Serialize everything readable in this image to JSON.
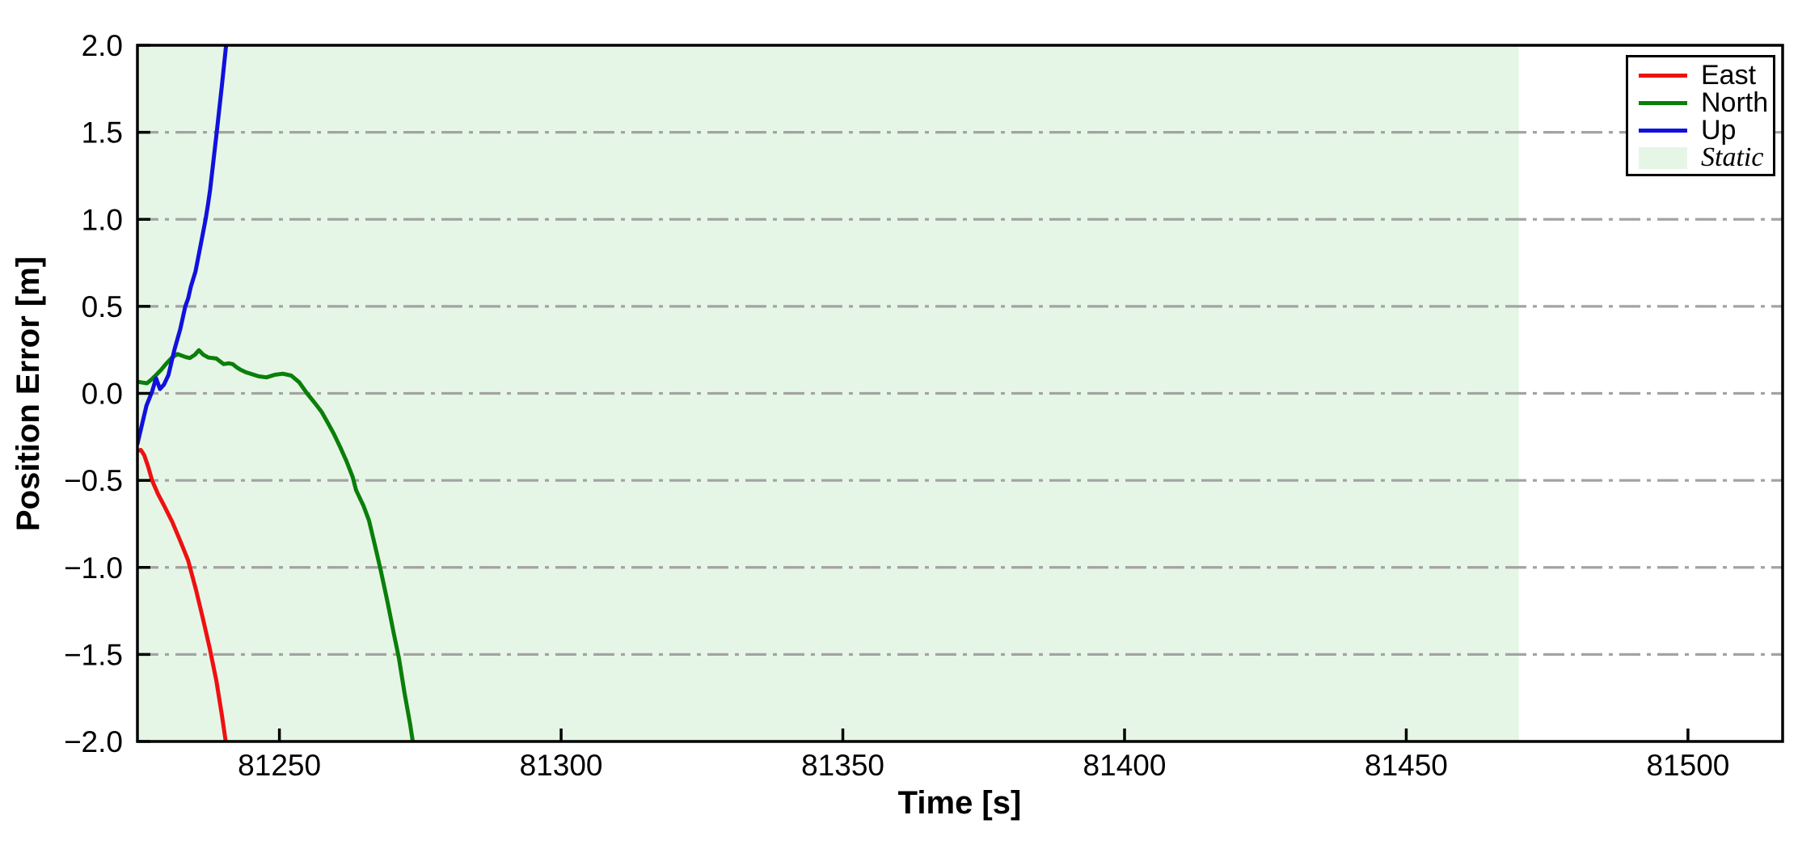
{
  "chart_data": {
    "type": "line",
    "title": "",
    "xlabel": "Time [s]",
    "ylabel": "Position Error [m]",
    "xlim": [
      81224.8,
      81516.8
    ],
    "ylim": [
      -2.0,
      2.0
    ],
    "grid": {
      "axis": "y",
      "style": "dash-dot",
      "color": "#a3a3a3"
    },
    "legend_position": "upper right",
    "xticks": {
      "values": [
        81250,
        81300,
        81350,
        81400,
        81450,
        81500
      ],
      "labels": [
        "81250",
        "81300",
        "81350",
        "81400",
        "81450",
        "81500"
      ]
    },
    "yticks": {
      "values": [
        2.0,
        1.5,
        1.0,
        0.5,
        0.0,
        -0.5,
        -1.0,
        -1.5,
        -2.0
      ],
      "labels": [
        "2.0",
        "1.5",
        "1.0",
        "0.5",
        "0.0",
        "−0.5",
        "−1.0",
        "−1.5",
        "−2.0"
      ]
    },
    "static_region": {
      "label": "Static",
      "start": 81224.8,
      "end": 81470,
      "color": "#e6f6e6"
    },
    "series": [
      {
        "name": "East",
        "color": "#ee1111",
        "points": [
          [
            81224.8,
            -0.33
          ],
          [
            81225.4,
            -0.325
          ],
          [
            81226.0,
            -0.355
          ],
          [
            81226.7,
            -0.42
          ],
          [
            81227.4,
            -0.5
          ],
          [
            81228.4,
            -0.575
          ],
          [
            81229.6,
            -0.65
          ],
          [
            81231.0,
            -0.74
          ],
          [
            81232.3,
            -0.84
          ],
          [
            81233.8,
            -0.96
          ],
          [
            81235.2,
            -1.13
          ],
          [
            81236.4,
            -1.29
          ],
          [
            81237.6,
            -1.46
          ],
          [
            81238.8,
            -1.65
          ],
          [
            81239.8,
            -1.85
          ],
          [
            81240.7,
            -2.05
          ]
        ]
      },
      {
        "name": "North",
        "color": "#0a7f0a",
        "points": [
          [
            81224.8,
            0.067
          ],
          [
            81225.7,
            0.062
          ],
          [
            81226.5,
            0.058
          ],
          [
            81227.3,
            0.08
          ],
          [
            81228.1,
            0.105
          ],
          [
            81229.0,
            0.135
          ],
          [
            81229.9,
            0.17
          ],
          [
            81230.9,
            0.205
          ],
          [
            81231.9,
            0.226
          ],
          [
            81232.8,
            0.215
          ],
          [
            81233.4,
            0.208
          ],
          [
            81234.1,
            0.203
          ],
          [
            81235.0,
            0.222
          ],
          [
            81235.7,
            0.248
          ],
          [
            81236.5,
            0.222
          ],
          [
            81237.4,
            0.206
          ],
          [
            81238.8,
            0.2
          ],
          [
            81240.1,
            0.168
          ],
          [
            81241.0,
            0.173
          ],
          [
            81241.7,
            0.168
          ],
          [
            81242.4,
            0.15
          ],
          [
            81243.1,
            0.136
          ],
          [
            81244.0,
            0.122
          ],
          [
            81244.9,
            0.113
          ],
          [
            81246.3,
            0.098
          ],
          [
            81247.7,
            0.092
          ],
          [
            81249.2,
            0.107
          ],
          [
            81250.6,
            0.113
          ],
          [
            81252.1,
            0.102
          ],
          [
            81253.5,
            0.064
          ],
          [
            81254.9,
            0.0
          ],
          [
            81256.4,
            -0.06
          ],
          [
            81257.5,
            -0.107
          ],
          [
            81258.6,
            -0.17
          ],
          [
            81259.7,
            -0.235
          ],
          [
            81260.8,
            -0.31
          ],
          [
            81261.9,
            -0.39
          ],
          [
            81263.0,
            -0.48
          ],
          [
            81263.6,
            -0.555
          ],
          [
            81264.1,
            -0.59
          ],
          [
            81264.9,
            -0.645
          ],
          [
            81265.9,
            -0.73
          ],
          [
            81267.0,
            -0.88
          ],
          [
            81268.0,
            -1.02
          ],
          [
            81269.2,
            -1.2
          ],
          [
            81270.3,
            -1.38
          ],
          [
            81271.2,
            -1.52
          ],
          [
            81272.2,
            -1.72
          ],
          [
            81273.2,
            -1.9
          ],
          [
            81273.9,
            -2.05
          ]
        ]
      },
      {
        "name": "Up",
        "color": "#1111dd",
        "points": [
          [
            81224.8,
            -0.29
          ],
          [
            81225.6,
            -0.18
          ],
          [
            81226.4,
            -0.07
          ],
          [
            81227.4,
            0.01
          ],
          [
            81228.1,
            0.087
          ],
          [
            81228.8,
            0.025
          ],
          [
            81229.5,
            0.05
          ],
          [
            81230.3,
            0.105
          ],
          [
            81231.4,
            0.255
          ],
          [
            81232.4,
            0.37
          ],
          [
            81233.3,
            0.5
          ],
          [
            81233.8,
            0.545
          ],
          [
            81234.3,
            0.615
          ],
          [
            81235.1,
            0.7
          ],
          [
            81236.0,
            0.85
          ],
          [
            81236.9,
            1.0
          ],
          [
            81237.3,
            1.08
          ],
          [
            81237.7,
            1.17
          ],
          [
            81238.3,
            1.34
          ],
          [
            81238.9,
            1.51
          ],
          [
            81239.8,
            1.77
          ],
          [
            81240.7,
            2.05
          ]
        ]
      }
    ],
    "legend": {
      "items": [
        {
          "label": "East",
          "swatch": "line",
          "color": "#ee1111",
          "italic": false
        },
        {
          "label": "North",
          "swatch": "line",
          "color": "#0a7f0a",
          "italic": false
        },
        {
          "label": "Up",
          "swatch": "line",
          "color": "#1111dd",
          "italic": false
        },
        {
          "label": "Static",
          "swatch": "patch",
          "color": "#e6f6e6",
          "italic": true
        }
      ]
    }
  }
}
